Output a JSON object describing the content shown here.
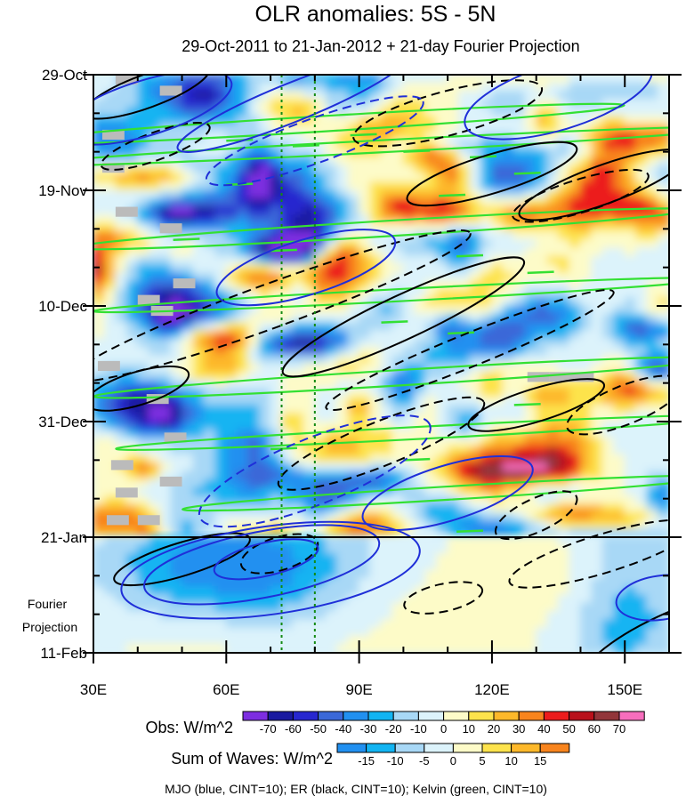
{
  "chart_data": {
    "type": "heatmap",
    "title": "OLR anomalies: 5S - 5N",
    "subtitle": "29-Oct-2011 to 21-Jan-2012 + 21-day Fourier Projection",
    "x_axis": {
      "label": "",
      "range": [
        30,
        160
      ],
      "unit": "degrees E",
      "ticks": [
        {
          "value": 30,
          "label": "30E"
        },
        {
          "value": 60,
          "label": "60E"
        },
        {
          "value": 90,
          "label": "90E"
        },
        {
          "value": 120,
          "label": "120E"
        },
        {
          "value": 150,
          "label": "150E"
        }
      ]
    },
    "y_axis": {
      "label": "",
      "range_days": [
        0,
        105
      ],
      "direction": "time increases downward",
      "ticks": [
        {
          "day": 0,
          "label": "29-Oct"
        },
        {
          "day": 21,
          "label": "19-Nov"
        },
        {
          "day": 42,
          "label": "10-Dec"
        },
        {
          "day": 63,
          "label": "31-Dec"
        },
        {
          "day": 84,
          "label": "21-Jan"
        },
        {
          "day": 105,
          "label": "11-Feb"
        }
      ]
    },
    "observation_end_day": 84,
    "projection_label": [
      "Fourier",
      "Projection"
    ],
    "reference_longitudes": [
      72.5,
      80
    ],
    "colorbars": [
      {
        "label": "Obs: W/m^2",
        "levels": [
          "-70",
          "-60",
          "-50",
          "-40",
          "-30",
          "-20",
          "-10",
          "0",
          "10",
          "20",
          "30",
          "40",
          "50",
          "60",
          "70"
        ],
        "colors": [
          "#7d2de0",
          "#1a1aa0",
          "#2727cf",
          "#3a68d8",
          "#2190f0",
          "#12b4f2",
          "#a8d8f6",
          "#dcf3fb",
          "#fdfbc8",
          "#fde34c",
          "#fdb82a",
          "#f8841d",
          "#ec1c1c",
          "#b9111b",
          "#92353a",
          "#f76ebd"
        ]
      },
      {
        "label": "Sum of Waves: W/m^2",
        "levels": [
          "-15",
          "-10",
          "-5",
          "0",
          "5",
          "10",
          "15"
        ],
        "colors": [
          "#2190f0",
          "#12b4f2",
          "#a8d8f6",
          "#dcf3fb",
          "#fdfbc8",
          "#fde34c",
          "#fdb82a",
          "#f8841d"
        ]
      }
    ],
    "legend_note": "MJO (blue, CINT=10); ER (black, CINT=10); Kelvin (green, CINT=10)",
    "missing_data_color": "#bbbbbb",
    "palette": {
      "mjo": "#1f2fd8",
      "er": "#000000",
      "kelvin": "#33e033",
      "reference": "#138a13"
    },
    "contours": {
      "mjo": [
        {
          "lon": 42,
          "day": 6,
          "a": 5,
          "b": 20,
          "angle": -17,
          "style": "solid"
        },
        {
          "lon": 75,
          "day": 5,
          "a": 3.5,
          "b": 28,
          "angle": -22,
          "style": "solid"
        },
        {
          "lon": 135,
          "day": 4,
          "a": 6,
          "b": 22,
          "angle": -17,
          "style": "solid"
        },
        {
          "lon": 78,
          "day": 35,
          "a": 5,
          "b": 21,
          "angle": -17,
          "style": "solid"
        },
        {
          "lon": 80,
          "day": 12,
          "a": 4,
          "b": 26,
          "angle": -20,
          "style": "dashed"
        },
        {
          "lon": 80,
          "day": 72,
          "a": 6,
          "b": 28,
          "angle": -22,
          "style": "dashed"
        },
        {
          "lon": 110,
          "day": 76,
          "a": 5,
          "b": 20,
          "angle": -17,
          "style": "solid"
        },
        {
          "lon": 69,
          "day": 88,
          "a": 3,
          "b": 12,
          "angle": -13,
          "style": "solid"
        },
        {
          "lon": 68,
          "day": 89,
          "a": 6,
          "b": 27,
          "angle": -11,
          "style": "solid"
        },
        {
          "lon": 70,
          "day": 90,
          "a": 8,
          "b": 34,
          "angle": -8,
          "style": "solid"
        },
        {
          "lon": 158,
          "day": 95,
          "a": 4,
          "b": 10,
          "angle": -8,
          "style": "solid"
        }
      ],
      "er": [
        {
          "lon": 42,
          "day": 3,
          "a": 3,
          "b": 15,
          "angle": -20,
          "style": "solid"
        },
        {
          "lon": 44,
          "day": 13,
          "a": 2.5,
          "b": 13,
          "angle": -20,
          "style": "dashed"
        },
        {
          "lon": 110,
          "day": 7,
          "a": 4,
          "b": 22,
          "angle": -15,
          "style": "dashed"
        },
        {
          "lon": 120,
          "day": 18,
          "a": 3.5,
          "b": 20,
          "angle": -17,
          "style": "solid"
        },
        {
          "lon": 140,
          "day": 22,
          "a": 3,
          "b": 16,
          "angle": -17,
          "style": "dashed"
        },
        {
          "lon": 145,
          "day": 20,
          "a": 3.5,
          "b": 20,
          "angle": -20,
          "style": "solid"
        },
        {
          "lon": 70,
          "day": 42,
          "a": 4,
          "b": 48,
          "angle": -20,
          "style": "dashed"
        },
        {
          "lon": 100,
          "day": 44,
          "a": 4,
          "b": 30,
          "angle": -25,
          "style": "solid"
        },
        {
          "lon": 115,
          "day": 50,
          "a": 3,
          "b": 35,
          "angle": -22,
          "style": "dashed"
        },
        {
          "lon": 130,
          "day": 60,
          "a": 3,
          "b": 16,
          "angle": -17,
          "style": "solid"
        },
        {
          "lon": 95,
          "day": 67,
          "a": 4,
          "b": 25,
          "angle": -22,
          "style": "dashed"
        },
        {
          "lon": 150,
          "day": 60,
          "a": 3.5,
          "b": 14,
          "angle": -22,
          "style": "dashed"
        },
        {
          "lon": 130,
          "day": 80,
          "a": 3,
          "b": 10,
          "angle": -25,
          "style": "dashed"
        },
        {
          "lon": 145,
          "day": 87,
          "a": 3.5,
          "b": 22,
          "angle": -17,
          "style": "dashed"
        },
        {
          "lon": 72,
          "day": 87,
          "a": 3,
          "b": 9,
          "angle": -17,
          "style": "dashed"
        },
        {
          "lon": 109,
          "day": 95,
          "a": 2.5,
          "b": 9,
          "angle": -12,
          "style": "dashed"
        },
        {
          "lon": 50,
          "day": 88,
          "a": 3,
          "b": 16,
          "angle": -17,
          "style": "solid"
        },
        {
          "lon": 160,
          "day": 103,
          "a": 5,
          "b": 22,
          "angle": -25,
          "style": "solid"
        },
        {
          "lon": 40,
          "day": 57,
          "a": 3,
          "b": 12,
          "angle": -17,
          "style": "solid"
        }
      ],
      "kelvin": [
        {
          "lon": 80,
          "day": 9,
          "a": 1.4,
          "b": 70,
          "angle": -3.5
        },
        {
          "lon": 95,
          "day": 13,
          "a": 1.1,
          "b": 80,
          "angle": -3
        },
        {
          "lon": 95,
          "day": 28,
          "a": 1.4,
          "b": 70,
          "angle": -3.5
        },
        {
          "lon": 100,
          "day": 40,
          "a": 1.1,
          "b": 70,
          "angle": -3
        },
        {
          "lon": 100,
          "day": 55,
          "a": 1.4,
          "b": 70,
          "angle": -3.5
        },
        {
          "lon": 105,
          "day": 65,
          "a": 1.1,
          "b": 70,
          "angle": -3
        },
        {
          "lon": 110,
          "day": 76,
          "a": 1.2,
          "b": 60,
          "angle": -3.5
        }
      ]
    }
  }
}
